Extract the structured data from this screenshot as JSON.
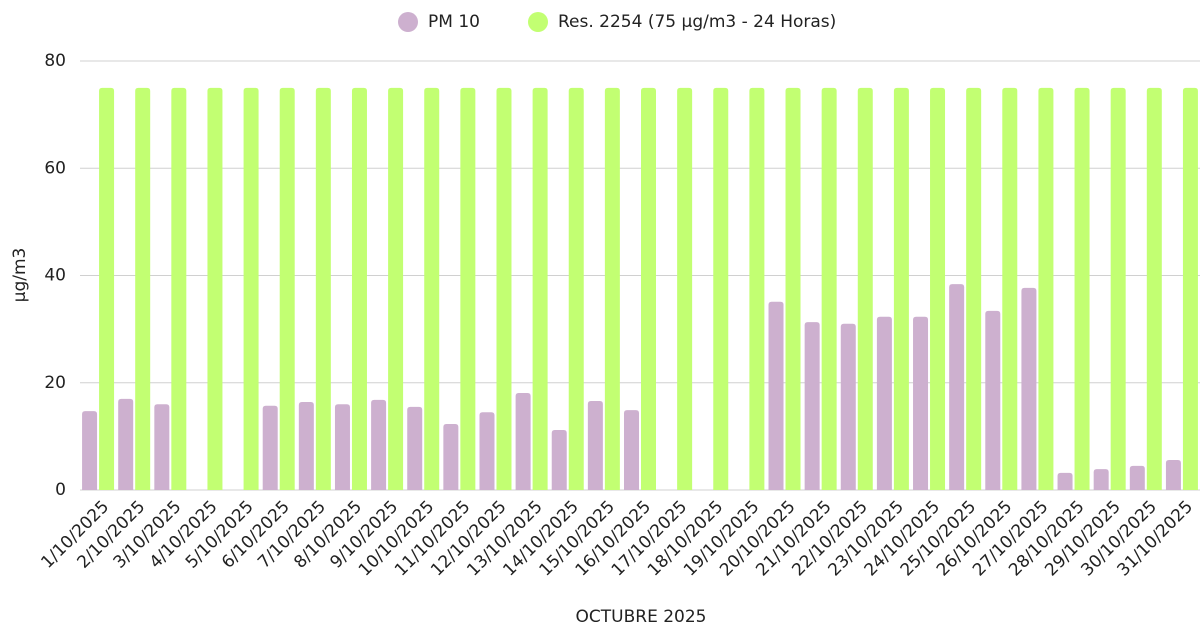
{
  "chart_data": {
    "type": "bar",
    "xlabel": "OCTUBRE 2025",
    "ylabel": "µg/m3",
    "categories": [
      "1/10/2025",
      "2/10/2025",
      "3/10/2025",
      "4/10/2025",
      "5/10/2025",
      "6/10/2025",
      "7/10/2025",
      "8/10/2025",
      "9/10/2025",
      "10/10/2025",
      "11/10/2025",
      "12/10/2025",
      "13/10/2025",
      "14/10/2025",
      "15/10/2025",
      "16/10/2025",
      "17/10/2025",
      "18/10/2025",
      "19/10/2025",
      "20/10/2025",
      "21/10/2025",
      "22/10/2025",
      "23/10/2025",
      "24/10/2025",
      "25/10/2025",
      "26/10/2025",
      "27/10/2025",
      "28/10/2025",
      "29/10/2025",
      "30/10/2025",
      "31/10/2025"
    ],
    "series": [
      {
        "name": "PM 10",
        "color": "#cdb0cf",
        "values": [
          14.7,
          17,
          16,
          null,
          null,
          15.7,
          16.4,
          16,
          16.8,
          15.5,
          12.3,
          14.5,
          18.1,
          11.2,
          16.6,
          14.9,
          null,
          null,
          null,
          35.1,
          31.3,
          31,
          32.3,
          32.3,
          38.4,
          33.4,
          37.7,
          3.2,
          3.9,
          4.5,
          5.6
        ]
      },
      {
        "name": "Res. 2254 (75 µg/m3 - 24 Horas)",
        "color": "#c2ff72",
        "values": [
          75,
          75,
          75,
          75,
          75,
          75,
          75,
          75,
          75,
          75,
          75,
          75,
          75,
          75,
          75,
          75,
          75,
          75,
          75,
          75,
          75,
          75,
          75,
          75,
          75,
          75,
          75,
          75,
          75,
          75,
          75
        ]
      }
    ],
    "ylim": [
      0,
      80
    ],
    "yticks": [
      0,
      20,
      40,
      60,
      80
    ],
    "grid": true
  }
}
